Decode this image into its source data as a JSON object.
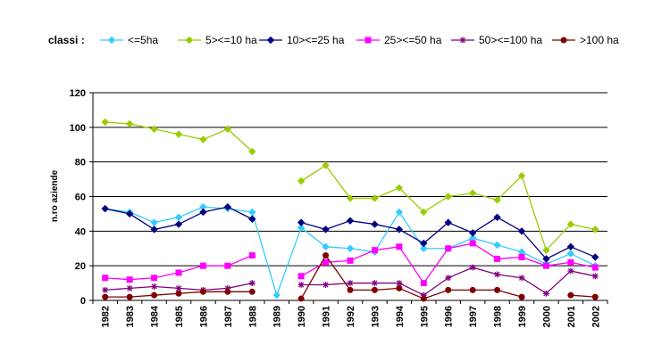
{
  "legend": {
    "title": "classi :"
  },
  "chart_data": {
    "type": "line",
    "title": "",
    "xlabel": "",
    "ylabel": "n.ro aziende",
    "ylim": [
      0,
      120
    ],
    "yticks": [
      0,
      20,
      40,
      60,
      80,
      100,
      120
    ],
    "grid": true,
    "legend_position": "top",
    "categories": [
      "1982",
      "1983",
      "1984",
      "1985",
      "1986",
      "1987",
      "1988",
      "1989",
      "1990",
      "1991",
      "1992",
      "1993",
      "1994",
      "1995",
      "1996",
      "1997",
      "1998",
      "1999",
      "2000",
      "2001",
      "2002"
    ],
    "series": [
      {
        "name": "<=5ha",
        "color": "#33CCFF",
        "marker": "diamond",
        "values": [
          53,
          51,
          45,
          48,
          54,
          53,
          51,
          3,
          42,
          31,
          30,
          28,
          51,
          30,
          30,
          36,
          32,
          28,
          21,
          27,
          20
        ]
      },
      {
        "name": "5><=10 ha",
        "color": "#99CC00",
        "marker": "diamond",
        "values": [
          103,
          102,
          99,
          96,
          93,
          99,
          86,
          null,
          69,
          78,
          59,
          59,
          65,
          51,
          60,
          62,
          58,
          72,
          29,
          44,
          41
        ]
      },
      {
        "name": "10><=25 ha",
        "color": "#000080",
        "marker": "diamond",
        "values": [
          53,
          50,
          41,
          44,
          51,
          54,
          47,
          null,
          45,
          41,
          46,
          44,
          41,
          33,
          45,
          39,
          48,
          40,
          24,
          31,
          25
        ]
      },
      {
        "name": "25><=50 ha",
        "color": "#FF00FF",
        "marker": "square",
        "values": [
          13,
          12,
          13,
          16,
          20,
          20,
          26,
          null,
          14,
          22,
          23,
          29,
          31,
          10,
          30,
          33,
          24,
          25,
          20,
          22,
          19
        ]
      },
      {
        "name": "50><=100 ha",
        "color": "#800080",
        "marker": "star",
        "values": [
          6,
          7,
          8,
          7,
          6,
          7,
          10,
          null,
          9,
          9,
          10,
          10,
          10,
          3,
          13,
          19,
          15,
          13,
          4,
          17,
          14
        ]
      },
      {
        "name": ">100 ha",
        "color": "#800000",
        "marker": "circle",
        "values": [
          2,
          2,
          3,
          4,
          5,
          5,
          5,
          null,
          1,
          26,
          6,
          6,
          7,
          1,
          6,
          6,
          6,
          2,
          null,
          3,
          2
        ]
      }
    ]
  }
}
